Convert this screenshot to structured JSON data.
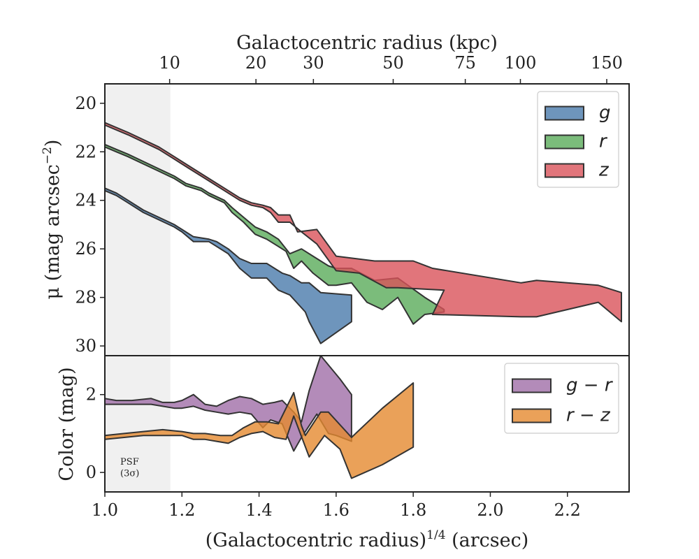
{
  "chart_data": [
    {
      "panel": "top",
      "type": "area",
      "xlabel": "(Galactocentric radius)",
      "xlabel_exp": "1/4",
      "xlabel_unit": " (arcsec)",
      "ylabel": "μ (mag arcsec",
      "ylabel_exp": "−2",
      "ylabel_close": ")",
      "top_xlabel": "Galactocentric radius (kpc)",
      "top_ticks": [
        {
          "label": "10",
          "x": 1.168
        },
        {
          "label": "20",
          "x": 1.392
        },
        {
          "label": "30",
          "x": 1.541
        },
        {
          "label": "50",
          "x": 1.748
        },
        {
          "label": "75",
          "x": 1.935
        },
        {
          "label": "100",
          "x": 2.078
        },
        {
          "label": "150",
          "x": 2.302
        }
      ],
      "xlim": [
        1.0,
        2.36
      ],
      "ylim": [
        30.4,
        19.2
      ],
      "y_inverted": true,
      "yticks": [
        20,
        22,
        24,
        26,
        28,
        30
      ],
      "grid": false,
      "legend_position": "top-right",
      "shaded_region": {
        "x": [
          1.0,
          1.17
        ],
        "color": "#f0f0f0"
      },
      "series": [
        {
          "name": "g",
          "color": "#4a7aab",
          "upper": [
            [
              1.0,
              23.5
            ],
            [
              1.03,
              23.7
            ],
            [
              1.06,
              24.0
            ],
            [
              1.1,
              24.4
            ],
            [
              1.14,
              24.7
            ],
            [
              1.18,
              25.0
            ],
            [
              1.2,
              25.2
            ],
            [
              1.23,
              25.5
            ],
            [
              1.27,
              25.6
            ],
            [
              1.29,
              25.7
            ],
            [
              1.32,
              26.0
            ],
            [
              1.35,
              26.4
            ],
            [
              1.38,
              26.6
            ],
            [
              1.42,
              26.6
            ],
            [
              1.46,
              27.0
            ],
            [
              1.48,
              27.1
            ],
            [
              1.51,
              27.4
            ],
            [
              1.53,
              27.4
            ],
            [
              1.56,
              27.8
            ],
            [
              1.64,
              27.9
            ]
          ],
          "lower": [
            [
              1.64,
              29.0
            ],
            [
              1.56,
              29.9
            ],
            [
              1.53,
              29.0
            ],
            [
              1.52,
              28.6
            ],
            [
              1.48,
              27.9
            ],
            [
              1.45,
              27.7
            ],
            [
              1.42,
              27.2
            ],
            [
              1.38,
              27.2
            ],
            [
              1.35,
              26.8
            ],
            [
              1.32,
              26.2
            ],
            [
              1.29,
              25.9
            ],
            [
              1.27,
              25.7
            ],
            [
              1.23,
              25.7
            ],
            [
              1.2,
              25.3
            ],
            [
              1.18,
              25.1
            ],
            [
              1.14,
              24.8
            ],
            [
              1.1,
              24.5
            ],
            [
              1.06,
              24.1
            ],
            [
              1.03,
              23.8
            ],
            [
              1.0,
              23.6
            ]
          ]
        },
        {
          "name": "r",
          "color": "#5aab5a",
          "upper": [
            [
              1.0,
              21.7
            ],
            [
              1.03,
              21.9
            ],
            [
              1.06,
              22.1
            ],
            [
              1.1,
              22.4
            ],
            [
              1.14,
              22.7
            ],
            [
              1.18,
              23.0
            ],
            [
              1.21,
              23.3
            ],
            [
              1.25,
              23.5
            ],
            [
              1.27,
              23.7
            ],
            [
              1.31,
              24.0
            ],
            [
              1.33,
              24.3
            ],
            [
              1.36,
              24.7
            ],
            [
              1.39,
              25.1
            ],
            [
              1.42,
              25.3
            ],
            [
              1.45,
              25.6
            ],
            [
              1.48,
              26.2
            ],
            [
              1.51,
              26.0
            ],
            [
              1.54,
              26.3
            ],
            [
              1.58,
              26.7
            ],
            [
              1.6,
              26.8
            ],
            [
              1.64,
              26.8
            ],
            [
              1.7,
              27.3
            ],
            [
              1.76,
              27.2
            ],
            [
              1.83,
              28.0
            ],
            [
              1.88,
              28.5
            ]
          ],
          "lower": [
            [
              1.88,
              28.6
            ],
            [
              1.83,
              28.7
            ],
            [
              1.8,
              29.1
            ],
            [
              1.76,
              28.0
            ],
            [
              1.72,
              28.5
            ],
            [
              1.68,
              28.2
            ],
            [
              1.64,
              27.4
            ],
            [
              1.6,
              27.5
            ],
            [
              1.58,
              27.5
            ],
            [
              1.54,
              27.0
            ],
            [
              1.51,
              26.5
            ],
            [
              1.49,
              26.8
            ],
            [
              1.47,
              26.1
            ],
            [
              1.45,
              25.9
            ],
            [
              1.42,
              25.6
            ],
            [
              1.39,
              25.4
            ],
            [
              1.36,
              24.9
            ],
            [
              1.33,
              24.5
            ],
            [
              1.31,
              24.1
            ],
            [
              1.27,
              23.8
            ],
            [
              1.25,
              23.6
            ],
            [
              1.21,
              23.4
            ],
            [
              1.18,
              23.1
            ],
            [
              1.14,
              22.8
            ],
            [
              1.1,
              22.5
            ],
            [
              1.06,
              22.2
            ],
            [
              1.03,
              22.0
            ],
            [
              1.0,
              21.8
            ]
          ]
        },
        {
          "name": "z",
          "color": "#d9535a",
          "upper": [
            [
              1.0,
              20.8
            ],
            [
              1.03,
              21.0
            ],
            [
              1.06,
              21.2
            ],
            [
              1.1,
              21.5
            ],
            [
              1.14,
              21.8
            ],
            [
              1.18,
              22.2
            ],
            [
              1.22,
              22.6
            ],
            [
              1.27,
              23.1
            ],
            [
              1.31,
              23.5
            ],
            [
              1.35,
              23.9
            ],
            [
              1.38,
              24.1
            ],
            [
              1.41,
              24.2
            ],
            [
              1.43,
              24.3
            ],
            [
              1.45,
              24.6
            ],
            [
              1.48,
              24.6
            ],
            [
              1.5,
              25.3
            ],
            [
              1.55,
              25.2
            ],
            [
              1.6,
              26.3
            ],
            [
              1.7,
              26.5
            ],
            [
              1.8,
              26.5
            ],
            [
              1.85,
              26.8
            ],
            [
              2.08,
              27.4
            ],
            [
              2.12,
              27.3
            ],
            [
              2.28,
              27.5
            ],
            [
              2.34,
              27.8
            ]
          ],
          "lower": [
            [
              2.34,
              29.0
            ],
            [
              2.28,
              28.2
            ],
            [
              2.12,
              28.8
            ],
            [
              2.08,
              28.8
            ],
            [
              1.85,
              28.7
            ],
            [
              1.88,
              27.7
            ],
            [
              1.76,
              27.6
            ],
            [
              1.73,
              27.6
            ],
            [
              1.66,
              27.0
            ],
            [
              1.6,
              26.9
            ],
            [
              1.55,
              25.8
            ],
            [
              1.51,
              25.3
            ],
            [
              1.48,
              24.9
            ],
            [
              1.45,
              24.9
            ],
            [
              1.43,
              24.5
            ],
            [
              1.41,
              24.3
            ],
            [
              1.38,
              24.2
            ],
            [
              1.35,
              24.0
            ],
            [
              1.31,
              23.6
            ],
            [
              1.27,
              23.2
            ],
            [
              1.22,
              22.7
            ],
            [
              1.18,
              22.3
            ],
            [
              1.14,
              21.9
            ],
            [
              1.1,
              21.6
            ],
            [
              1.06,
              21.3
            ],
            [
              1.03,
              21.1
            ],
            [
              1.0,
              20.9
            ]
          ]
        }
      ]
    },
    {
      "panel": "bottom",
      "type": "area",
      "xlabel": "(Galactocentric radius)",
      "xlabel_exp": "1/4",
      "xlabel_unit": " (arcsec)",
      "ylabel": "Color (mag)",
      "xlim": [
        1.0,
        2.36
      ],
      "xticks": [
        1.0,
        1.2,
        1.4,
        1.6,
        1.8,
        2.0,
        2.2
      ],
      "xtick_labels": [
        "1.0",
        "1.2",
        "1.4",
        "1.6",
        "1.8",
        "2.0",
        "2.2"
      ],
      "ylim": [
        -0.5,
        3.0
      ],
      "yticks": [
        0,
        2
      ],
      "grid": false,
      "legend_position": "top-right",
      "annotation": {
        "line1": "PSF",
        "line2": "(3σ)",
        "x": 1.04,
        "y1": 0.2,
        "y2": -0.1
      },
      "series": [
        {
          "name": "g − r",
          "color": "#a06ea8",
          "upper": [
            [
              1.0,
              1.9
            ],
            [
              1.03,
              1.85
            ],
            [
              1.07,
              1.85
            ],
            [
              1.12,
              1.9
            ],
            [
              1.15,
              1.8
            ],
            [
              1.18,
              1.8
            ],
            [
              1.2,
              1.85
            ],
            [
              1.23,
              2.0
            ],
            [
              1.26,
              1.75
            ],
            [
              1.29,
              1.7
            ],
            [
              1.32,
              1.85
            ],
            [
              1.35,
              1.95
            ],
            [
              1.38,
              1.9
            ],
            [
              1.41,
              1.75
            ],
            [
              1.44,
              1.8
            ],
            [
              1.46,
              1.85
            ],
            [
              1.49,
              1.55
            ],
            [
              1.51,
              1.3
            ],
            [
              1.53,
              2.1
            ],
            [
              1.56,
              3.0
            ],
            [
              1.61,
              2.4
            ],
            [
              1.64,
              2.0
            ]
          ],
          "lower": [
            [
              1.64,
              0.8
            ],
            [
              1.6,
              0.95
            ],
            [
              1.58,
              1.0
            ],
            [
              1.55,
              1.5
            ],
            [
              1.51,
              0.9
            ],
            [
              1.49,
              0.55
            ],
            [
              1.46,
              1.25
            ],
            [
              1.43,
              1.35
            ],
            [
              1.41,
              1.15
            ],
            [
              1.38,
              1.5
            ],
            [
              1.35,
              1.55
            ],
            [
              1.32,
              1.5
            ],
            [
              1.29,
              1.55
            ],
            [
              1.26,
              1.6
            ],
            [
              1.23,
              1.7
            ],
            [
              1.2,
              1.65
            ],
            [
              1.18,
              1.65
            ],
            [
              1.15,
              1.7
            ],
            [
              1.12,
              1.75
            ],
            [
              1.07,
              1.75
            ],
            [
              1.03,
              1.75
            ],
            [
              1.0,
              1.75
            ]
          ]
        },
        {
          "name": "r − z",
          "color": "#e58a30",
          "upper": [
            [
              1.0,
              0.95
            ],
            [
              1.05,
              1.0
            ],
            [
              1.1,
              1.05
            ],
            [
              1.15,
              1.1
            ],
            [
              1.2,
              1.05
            ],
            [
              1.23,
              1.0
            ],
            [
              1.26,
              1.0
            ],
            [
              1.3,
              0.95
            ],
            [
              1.33,
              0.95
            ],
            [
              1.36,
              1.15
            ],
            [
              1.39,
              1.3
            ],
            [
              1.42,
              1.3
            ],
            [
              1.45,
              1.25
            ],
            [
              1.49,
              2.05
            ],
            [
              1.51,
              1.2
            ],
            [
              1.52,
              0.95
            ],
            [
              1.56,
              1.55
            ],
            [
              1.58,
              1.55
            ],
            [
              1.64,
              0.9
            ],
            [
              1.72,
              1.65
            ],
            [
              1.8,
              2.3
            ]
          ],
          "lower": [
            [
              1.8,
              0.65
            ],
            [
              1.72,
              0.2
            ],
            [
              1.64,
              -0.15
            ],
            [
              1.61,
              0.6
            ],
            [
              1.57,
              0.95
            ],
            [
              1.53,
              0.4
            ],
            [
              1.49,
              1.45
            ],
            [
              1.47,
              0.85
            ],
            [
              1.44,
              0.9
            ],
            [
              1.41,
              1.05
            ],
            [
              1.38,
              1.0
            ],
            [
              1.35,
              0.9
            ],
            [
              1.32,
              0.75
            ],
            [
              1.29,
              0.8
            ],
            [
              1.26,
              0.85
            ],
            [
              1.23,
              0.85
            ],
            [
              1.2,
              0.95
            ],
            [
              1.15,
              0.95
            ],
            [
              1.1,
              0.95
            ],
            [
              1.05,
              0.9
            ],
            [
              1.0,
              0.85
            ]
          ]
        }
      ]
    }
  ]
}
